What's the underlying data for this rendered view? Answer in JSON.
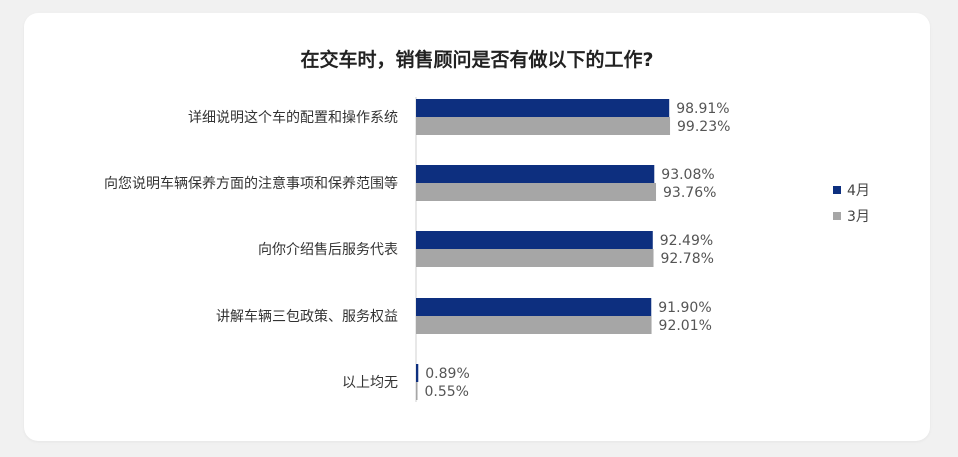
{
  "chart_data": {
    "type": "bar",
    "orientation": "horizontal",
    "title": "在交车时，销售顾问是否有做以下的工作?",
    "categories": [
      "详细说明这个车的配置和操作系统",
      "向您说明车辆保养方面的注意事项和保养范围等",
      "向你介绍售后服务代表",
      "讲解车辆三包政策、服务权益",
      "以上均无"
    ],
    "series": [
      {
        "name": "4月",
        "color": "#0d2f7f",
        "values": [
          98.91,
          93.08,
          92.49,
          91.9,
          0.89
        ],
        "labels": [
          "98.91%",
          "93.08%",
          "92.49%",
          "91.90%",
          "0.89%"
        ]
      },
      {
        "name": "3月",
        "color": "#a6a6a6",
        "values": [
          99.23,
          93.76,
          92.78,
          92.01,
          0.55
        ],
        "labels": [
          "99.23%",
          "93.76%",
          "92.78%",
          "92.01%",
          "0.55%"
        ]
      }
    ],
    "xlim": [
      0,
      100
    ],
    "grid": false,
    "legend_position": "right"
  }
}
